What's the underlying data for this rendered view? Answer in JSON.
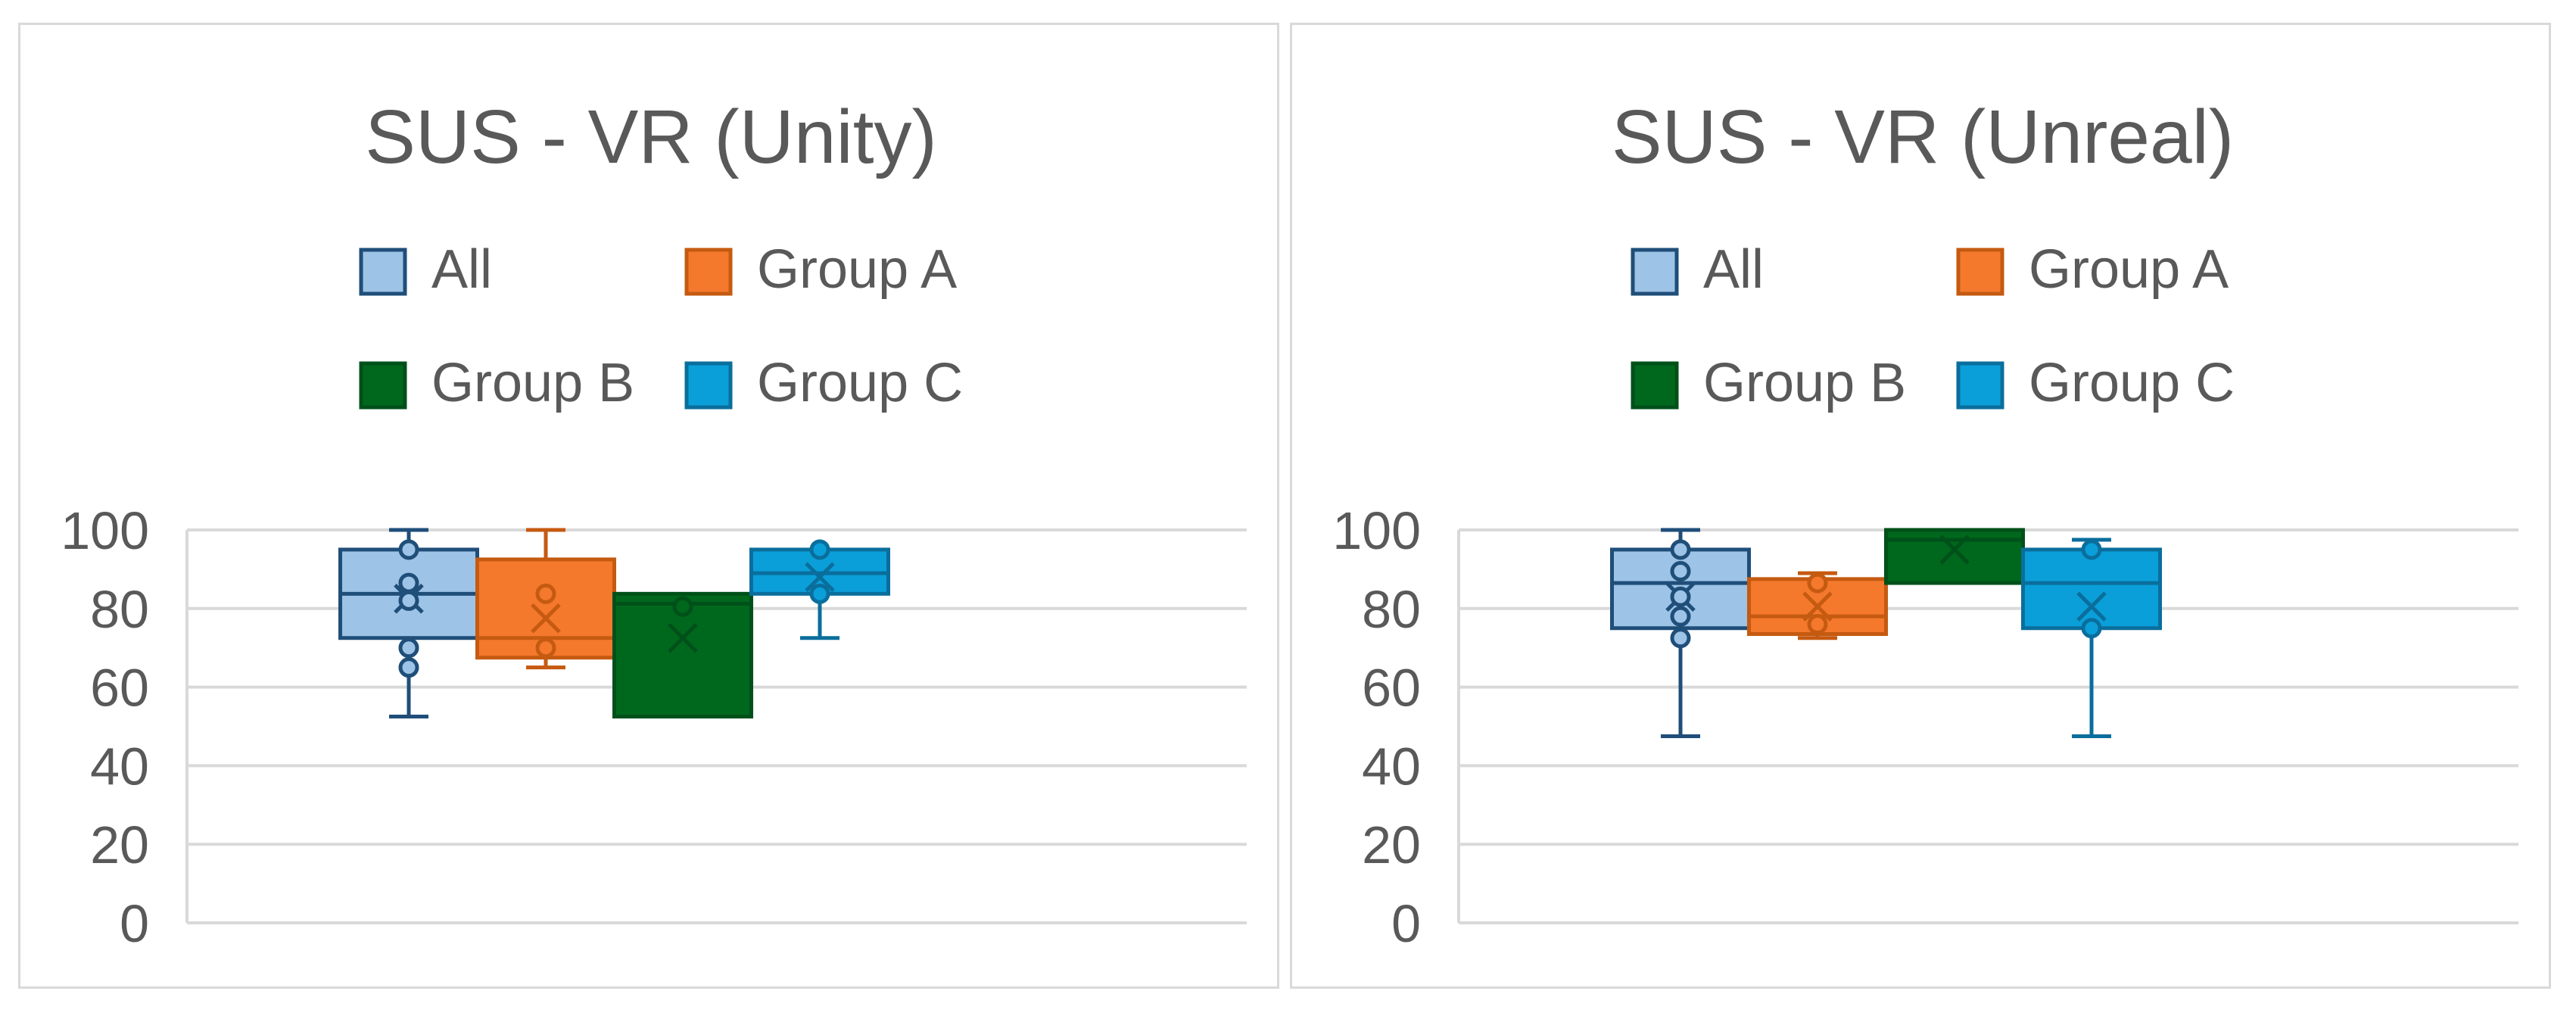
{
  "colors": {
    "All": {
      "fill": "#9dc3e6",
      "stroke": "#1f4e79"
    },
    "Group A": {
      "fill": "#f4792c",
      "stroke": "#c55a11"
    },
    "Group B": {
      "fill": "#00681c",
      "stroke": "#00501a"
    },
    "Group C": {
      "fill": "#0a9fd9",
      "stroke": "#0a6e9c"
    },
    "grid": "#d9d9d9",
    "text": "#595959"
  },
  "chart_data": [
    {
      "type": "box",
      "title": "SUS - VR (Unity)",
      "xlabel": "",
      "ylabel": "",
      "ylim": [
        0,
        100
      ],
      "yticks": [
        0,
        20,
        40,
        60,
        80,
        100
      ],
      "grid": true,
      "legend_position": "top",
      "legend": [
        "All",
        "Group A",
        "Group B",
        "Group C"
      ],
      "series": [
        {
          "name": "All",
          "min": 52.5,
          "q1": 72.5,
          "median": 83.75,
          "q3": 95,
          "max": 100,
          "mean": 82.5,
          "points": [
            95,
            86.5,
            82,
            70,
            65
          ]
        },
        {
          "name": "Group A",
          "min": 65,
          "q1": 67.5,
          "median": 72.5,
          "q3": 92.5,
          "max": 100,
          "mean": 77.5,
          "points": [
            83.75,
            70
          ]
        },
        {
          "name": "Group B",
          "min": 52.5,
          "q1": 52.5,
          "median": 81.25,
          "q3": 83.75,
          "max": 83.75,
          "mean": 72.5,
          "points": [
            80.5
          ]
        },
        {
          "name": "Group C",
          "min": 72.5,
          "q1": 83.75,
          "median": 89,
          "q3": 95,
          "max": 95,
          "mean": 88,
          "points": [
            95,
            83.75
          ]
        }
      ]
    },
    {
      "type": "box",
      "title": "SUS - VR (Unreal)",
      "xlabel": "",
      "ylabel": "",
      "ylim": [
        0,
        100
      ],
      "yticks": [
        0,
        20,
        40,
        60,
        80,
        100
      ],
      "grid": true,
      "legend_position": "top",
      "legend": [
        "All",
        "Group A",
        "Group B",
        "Group C"
      ],
      "series": [
        {
          "name": "All",
          "min": 47.5,
          "q1": 75,
          "median": 86.5,
          "q3": 95,
          "max": 100,
          "mean": 83,
          "points": [
            95,
            89.5,
            83,
            78,
            72.5
          ]
        },
        {
          "name": "Group A",
          "min": 72.5,
          "q1": 73.5,
          "median": 78,
          "q3": 87.5,
          "max": 89,
          "mean": 80.5,
          "points": [
            86.5,
            76
          ]
        },
        {
          "name": "Group B",
          "min": 86.5,
          "q1": 86.5,
          "median": 97.5,
          "q3": 100,
          "max": 100,
          "mean": 95,
          "points": []
        },
        {
          "name": "Group C",
          "min": 47.5,
          "q1": 75,
          "median": 86.5,
          "q3": 95,
          "max": 97.5,
          "mean": 80.5,
          "points": [
            95,
            75
          ]
        }
      ]
    }
  ]
}
